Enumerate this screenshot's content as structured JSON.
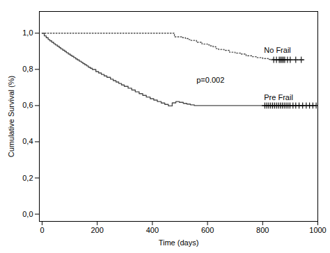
{
  "chart_data": {
    "type": "step",
    "title": "",
    "xlabel": "Time (days)",
    "ylabel": "Cumulative Survival (%)",
    "xlim": [
      -10,
      1000
    ],
    "ylim": [
      -0.04,
      1.12
    ],
    "xticks": [
      0,
      200,
      400,
      600,
      800,
      1000
    ],
    "yticks": [
      {
        "value": 0.0,
        "label": "0,0"
      },
      {
        "value": 0.2,
        "label": "0,2"
      },
      {
        "value": 0.4,
        "label": "0,4"
      },
      {
        "value": 0.6,
        "label": "0,6"
      },
      {
        "value": 0.8,
        "label": "0,8"
      },
      {
        "value": 1.0,
        "label": "1,0"
      }
    ],
    "grid": false,
    "series": [
      {
        "type": "step",
        "line_style": "dotted",
        "color": "#4a4a4a",
        "x": [
          0,
          30,
          60,
          90,
          100,
          120,
          150,
          160,
          165,
          170,
          200,
          210,
          230,
          240,
          250,
          260,
          280,
          300,
          340,
          380,
          420,
          450,
          480,
          500,
          510,
          520,
          530,
          540,
          560,
          580,
          600,
          610,
          620,
          630,
          640,
          660,
          680,
          700,
          720,
          740,
          760,
          780,
          800,
          820,
          840,
          950
        ],
        "values": [
          1.0,
          1.0,
          1.0,
          1.0,
          1.0,
          1.0,
          1.0,
          1.0,
          1.0,
          1.0,
          1.0,
          1.0,
          1.0,
          1.0,
          1.0,
          1.0,
          1.0,
          1.0,
          1.0,
          1.0,
          1.0,
          1.0,
          0.98,
          0.98,
          0.975,
          0.97,
          0.965,
          0.96,
          0.95,
          0.94,
          0.935,
          0.93,
          0.925,
          0.915,
          0.91,
          0.905,
          0.895,
          0.89,
          0.885,
          0.875,
          0.87,
          0.865,
          0.86,
          0.855,
          0.853,
          0.853
        ]
      },
      {
        "type": "step",
        "line_style": "solid",
        "color": "#4a4a4a",
        "x": [
          0,
          8,
          15,
          22,
          28,
          35,
          42,
          48,
          55,
          62,
          68,
          75,
          82,
          88,
          95,
          102,
          108,
          115,
          122,
          128,
          135,
          142,
          148,
          155,
          162,
          168,
          175,
          182,
          195,
          205,
          215,
          225,
          235,
          248,
          258,
          268,
          278,
          288,
          298,
          312,
          325,
          338,
          352,
          365,
          378,
          392,
          405,
          418,
          432,
          445,
          458,
          472,
          485,
          498,
          512,
          525,
          538,
          552,
          565,
          578,
          595,
          612,
          628,
          645,
          660,
          680,
          700,
          720,
          745,
          760,
          780,
          800,
          820,
          950
        ],
        "values": [
          1.0,
          0.985,
          0.975,
          0.965,
          0.958,
          0.95,
          0.942,
          0.935,
          0.928,
          0.92,
          0.913,
          0.906,
          0.899,
          0.892,
          0.885,
          0.878,
          0.872,
          0.865,
          0.858,
          0.852,
          0.845,
          0.839,
          0.832,
          0.825,
          0.819,
          0.812,
          0.806,
          0.799,
          0.788,
          0.78,
          0.772,
          0.764,
          0.756,
          0.746,
          0.738,
          0.73,
          0.722,
          0.714,
          0.706,
          0.696,
          0.686,
          0.676,
          0.666,
          0.656,
          0.647,
          0.638,
          0.63,
          0.622,
          0.614,
          0.606,
          0.598,
          0.615,
          0.622,
          0.618,
          0.612,
          0.608,
          0.604,
          0.6,
          0.6,
          0.6,
          0.6,
          0.6,
          0.6,
          0.6,
          0.6,
          0.6,
          0.6,
          0.6,
          0.6,
          0.6,
          0.6,
          0.6,
          0.6,
          0.6
        ]
      },
      {
        "type": "scatter",
        "marker": "+",
        "color": "black",
        "x": [
          840,
          850,
          860,
          865,
          870,
          875,
          880,
          890,
          900,
          920,
          940
        ],
        "values": [
          0.853,
          0.853,
          0.853,
          0.853,
          0.853,
          0.853,
          0.853,
          0.853,
          0.853,
          0.853,
          0.853
        ]
      },
      {
        "type": "scatter",
        "marker": "+",
        "color": "black",
        "x": [
          808,
          815,
          822,
          829,
          836,
          843,
          850,
          857,
          864,
          871,
          878,
          885,
          892,
          899,
          910,
          920,
          932,
          945,
          958,
          970,
          982,
          994
        ],
        "values": [
          0.6,
          0.6,
          0.6,
          0.6,
          0.6,
          0.6,
          0.6,
          0.6,
          0.6,
          0.6,
          0.6,
          0.6,
          0.6,
          0.6,
          0.6,
          0.6,
          0.6,
          0.6,
          0.6,
          0.6,
          0.6,
          0.6
        ]
      }
    ],
    "annotations": [
      {
        "text": "p=0.002",
        "x": 560,
        "y": 0.74
      },
      {
        "text": "No Frail",
        "x": 805,
        "y": 0.905
      },
      {
        "text": "Pre Frail",
        "x": 805,
        "y": 0.645
      }
    ]
  }
}
